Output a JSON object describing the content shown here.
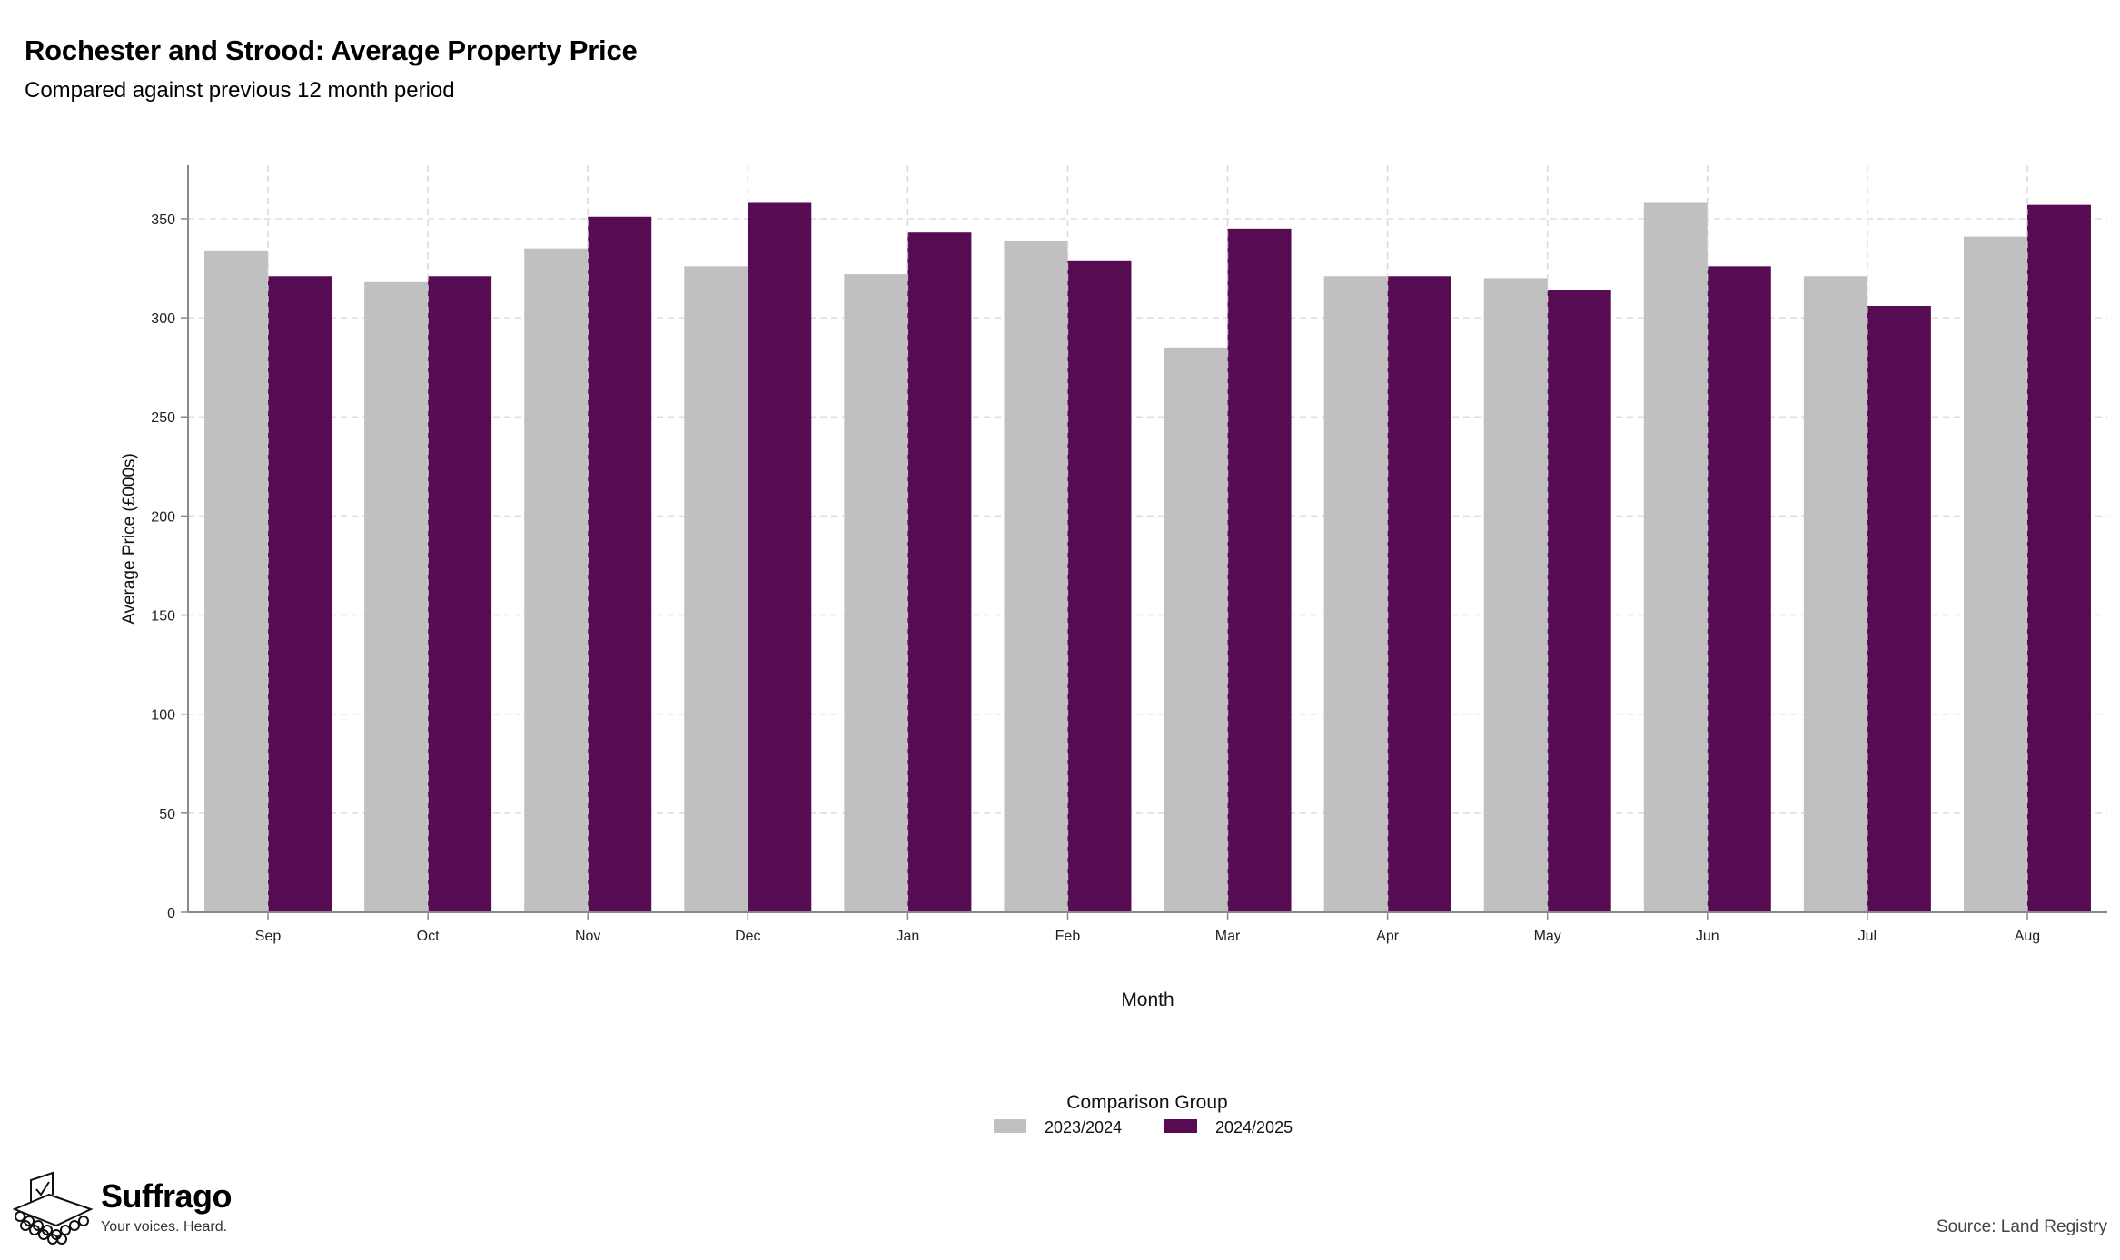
{
  "header": {
    "title": "Rochester and Strood: Average Property Price",
    "subtitle": "Compared against previous 12 month period"
  },
  "chart_data": {
    "type": "bar",
    "categories": [
      "Sep",
      "Oct",
      "Nov",
      "Dec",
      "Jan",
      "Feb",
      "Mar",
      "Apr",
      "May",
      "Jun",
      "Jul",
      "Aug"
    ],
    "series": [
      {
        "name": "2023/2024",
        "color": "#c0c0c0",
        "values": [
          334,
          318,
          335,
          326,
          322,
          339,
          285,
          321,
          320,
          358,
          321,
          341
        ]
      },
      {
        "name": "2024/2025",
        "color": "#560b52",
        "values": [
          321,
          321,
          351,
          358,
          343,
          329,
          345,
          321,
          314,
          326,
          306,
          357
        ]
      }
    ],
    "xlabel": "Month",
    "ylabel": "Average Price (£000s)",
    "ylim": [
      0,
      377
    ],
    "yticks": [
      0,
      50,
      100,
      150,
      200,
      250,
      300,
      350
    ],
    "grid": true,
    "legend_title": "Comparison Group",
    "legend_position": "bottom"
  },
  "footer": {
    "brand_name": "Suffrago",
    "brand_tagline": "Your voices. Heard.",
    "source": "Source: Land Registry"
  }
}
